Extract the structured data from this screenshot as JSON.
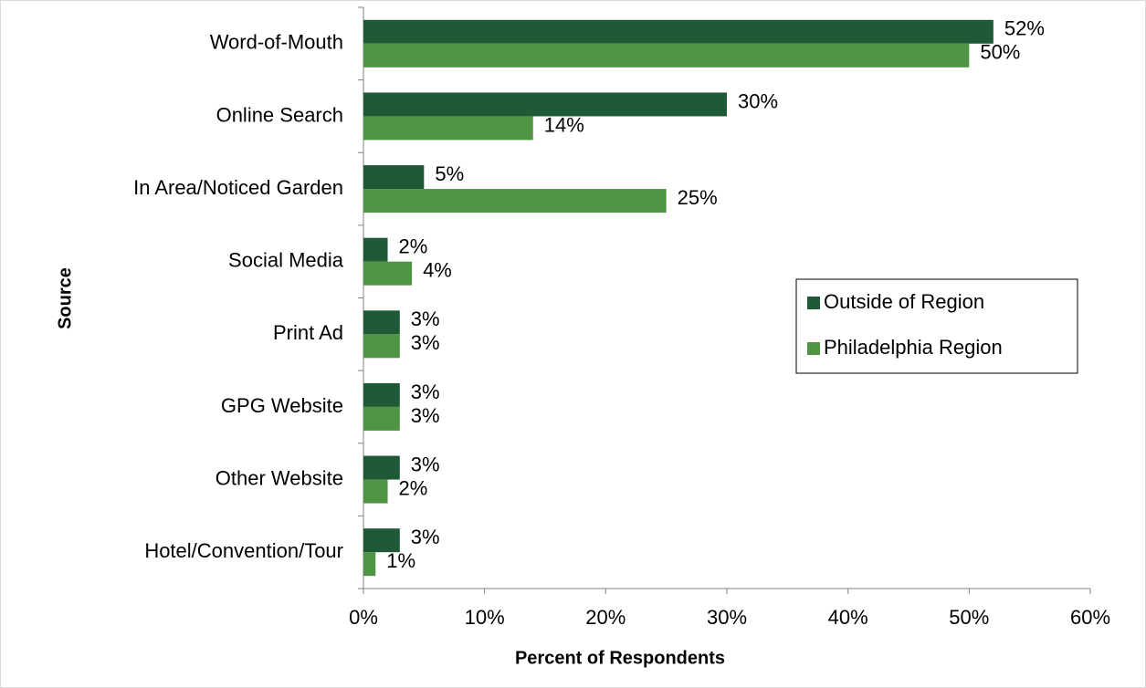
{
  "chart_data": {
    "type": "hbar",
    "xlabel": "Percent of Respondents",
    "ylabel": "Source",
    "categories": [
      "Word-of-Mouth",
      "Online Search",
      "In Area/Noticed Garden",
      "Social Media",
      "Print Ad",
      "GPG Website",
      "Other Website",
      "Hotel/Convention/Tour"
    ],
    "series": [
      {
        "name": "Outside of Region",
        "color": "#1f5a36",
        "values": [
          52,
          30,
          5,
          2,
          3,
          3,
          3,
          3
        ],
        "value_labels": [
          "52%",
          "30%",
          "5%",
          "2%",
          "3%",
          "3%",
          "3%",
          "3%"
        ]
      },
      {
        "name": "Philadelphia Region",
        "color": "#4f9443",
        "values": [
          50,
          14,
          25,
          4,
          3,
          3,
          2,
          1
        ],
        "value_labels": [
          "50%",
          "14%",
          "25%",
          "4%",
          "3%",
          "3%",
          "2%",
          "1%"
        ]
      }
    ],
    "xlim": [
      0,
      60
    ],
    "xticks": [
      {
        "value": 0,
        "label": "0%"
      },
      {
        "value": 10,
        "label": "10%"
      },
      {
        "value": 20,
        "label": "20%"
      },
      {
        "value": 30,
        "label": "30%"
      },
      {
        "value": 40,
        "label": "40%"
      },
      {
        "value": 50,
        "label": "50%"
      },
      {
        "value": 60,
        "label": "60%"
      }
    ],
    "grid": false
  }
}
